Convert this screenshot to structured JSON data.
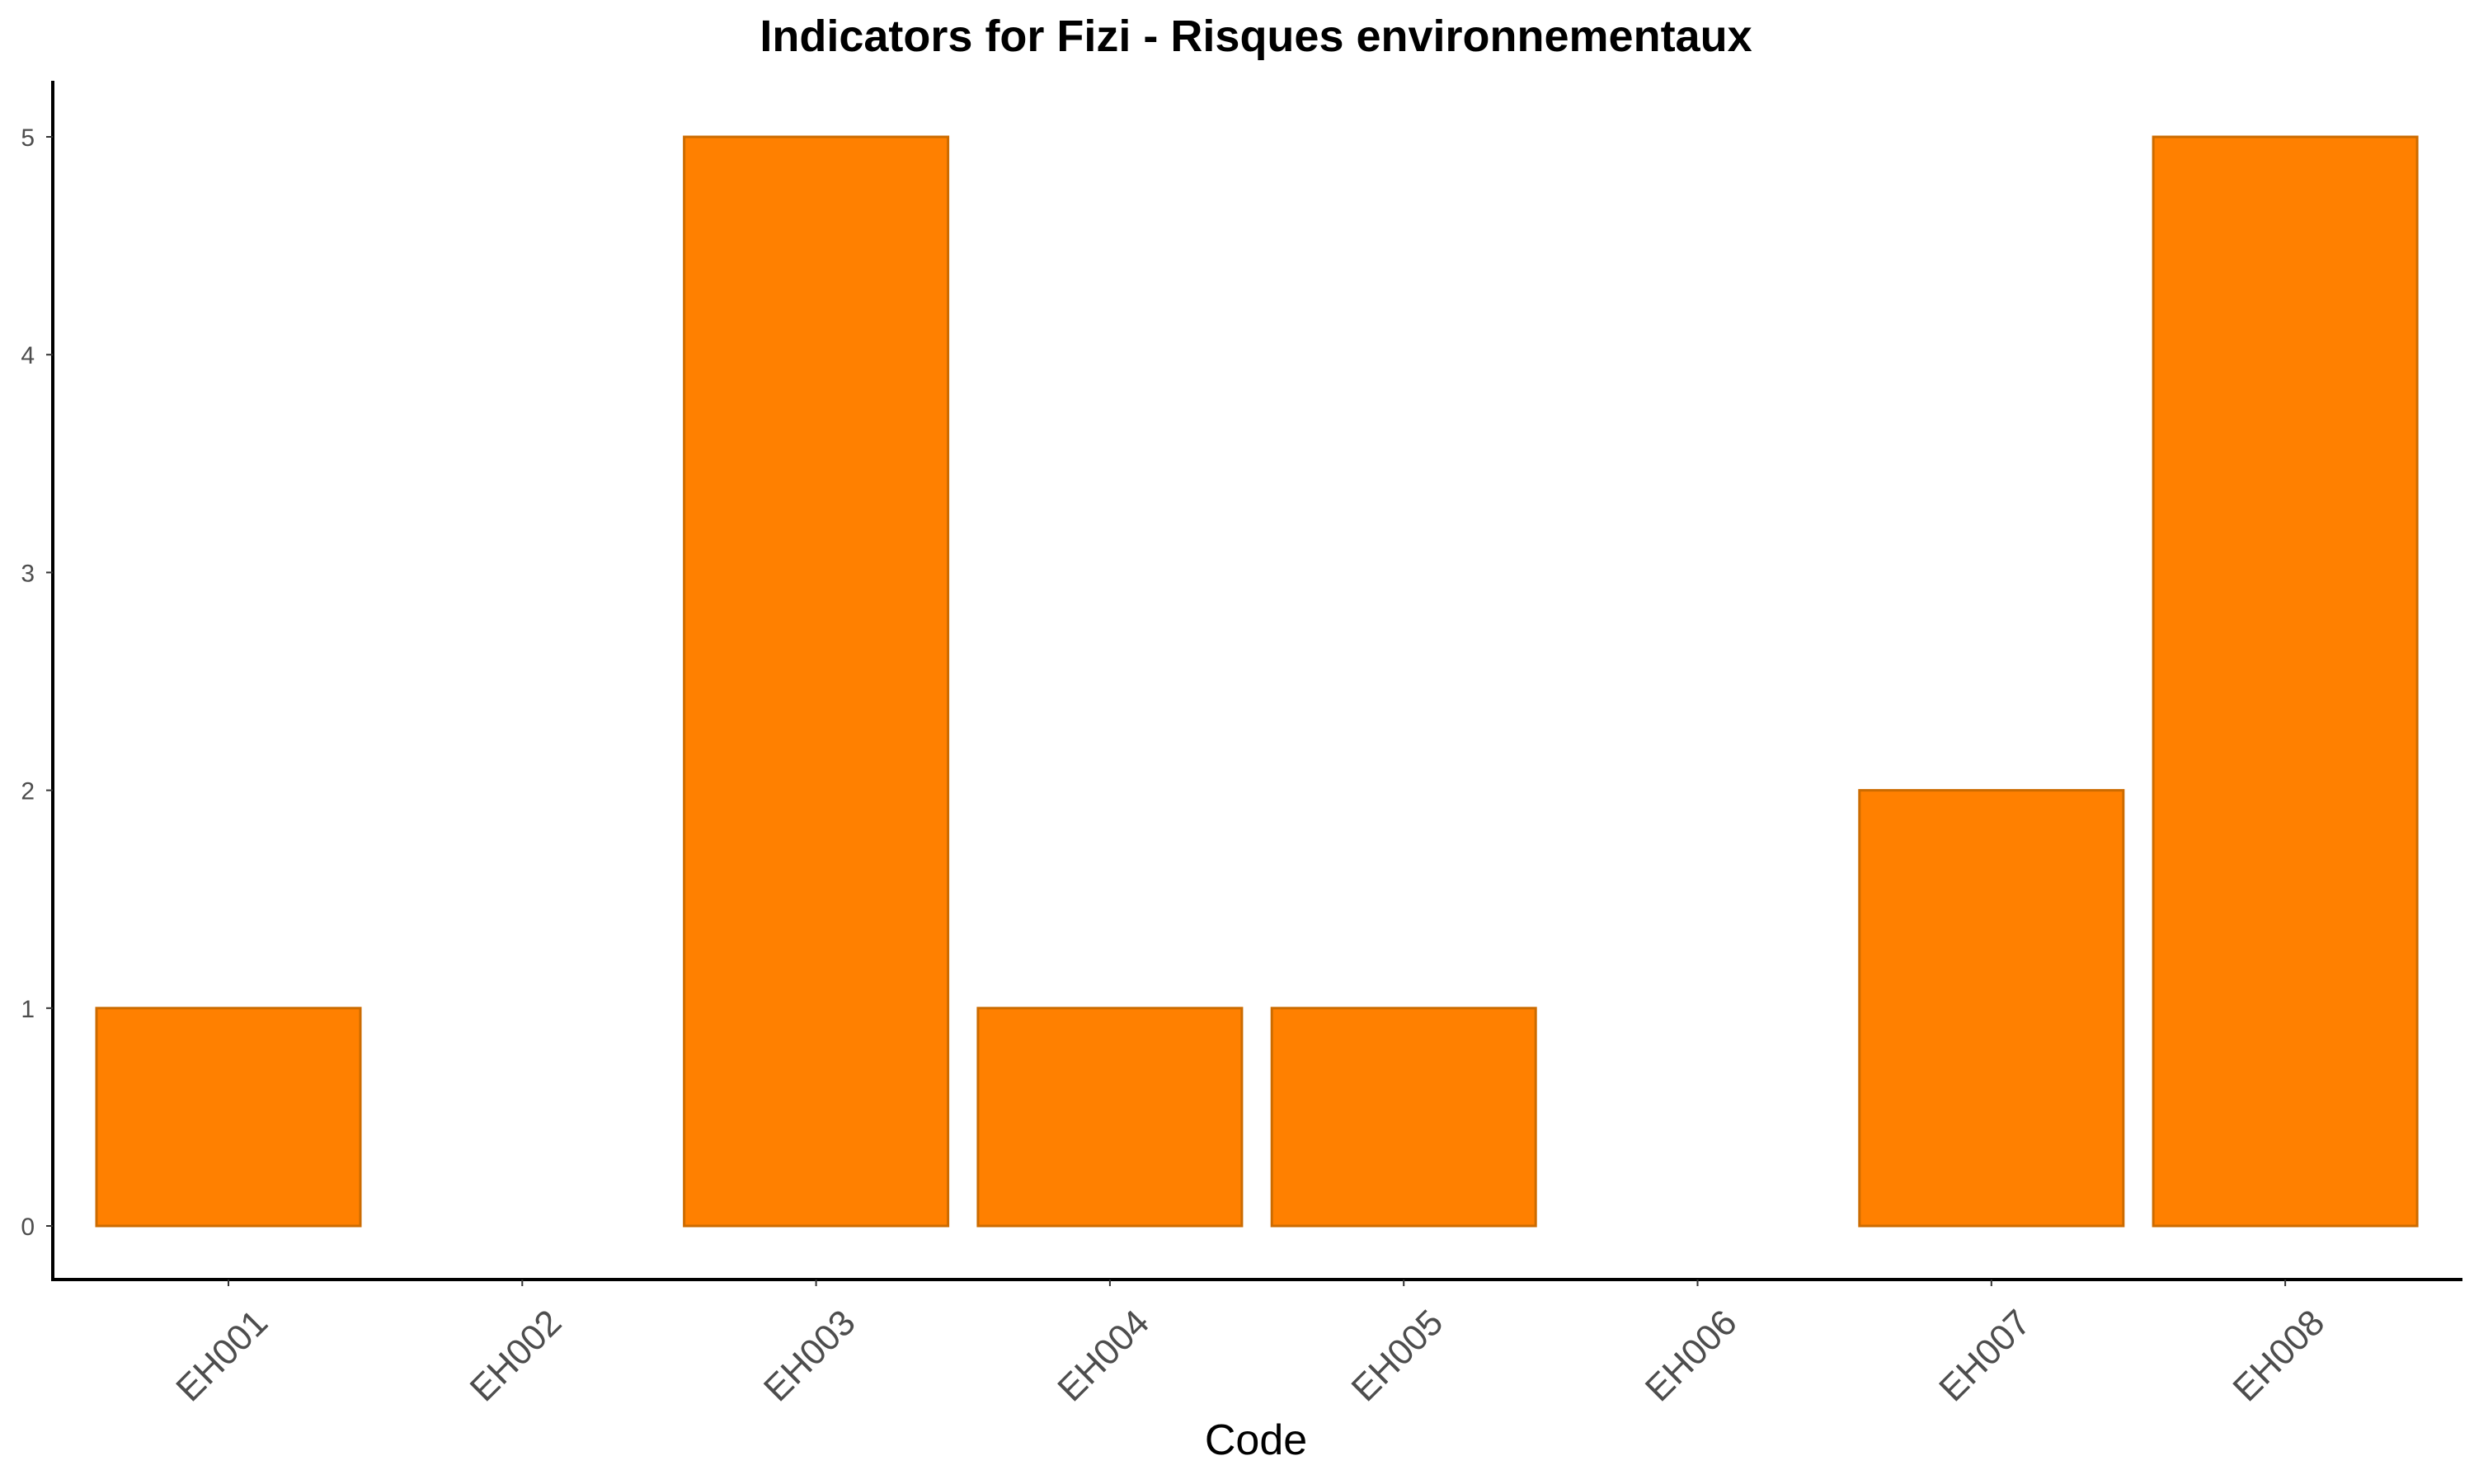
{
  "chart_data": {
    "type": "bar",
    "title": "Indicators for Fizi - Risques environnementaux",
    "xlabel": "Code",
    "ylabel": "",
    "categories": [
      "EH001",
      "EH002",
      "EH003",
      "EH004",
      "EH005",
      "EH006",
      "EH007",
      "EH008"
    ],
    "values": [
      1,
      0,
      5,
      1,
      1,
      0,
      2,
      5
    ],
    "yticks": [
      "0",
      "1",
      "2",
      "3",
      "4",
      "5"
    ],
    "ylim": [
      0,
      5
    ],
    "grid": false,
    "legend": "none",
    "bar_fill": "#ff8000",
    "bar_stroke": "#cc6b00"
  }
}
